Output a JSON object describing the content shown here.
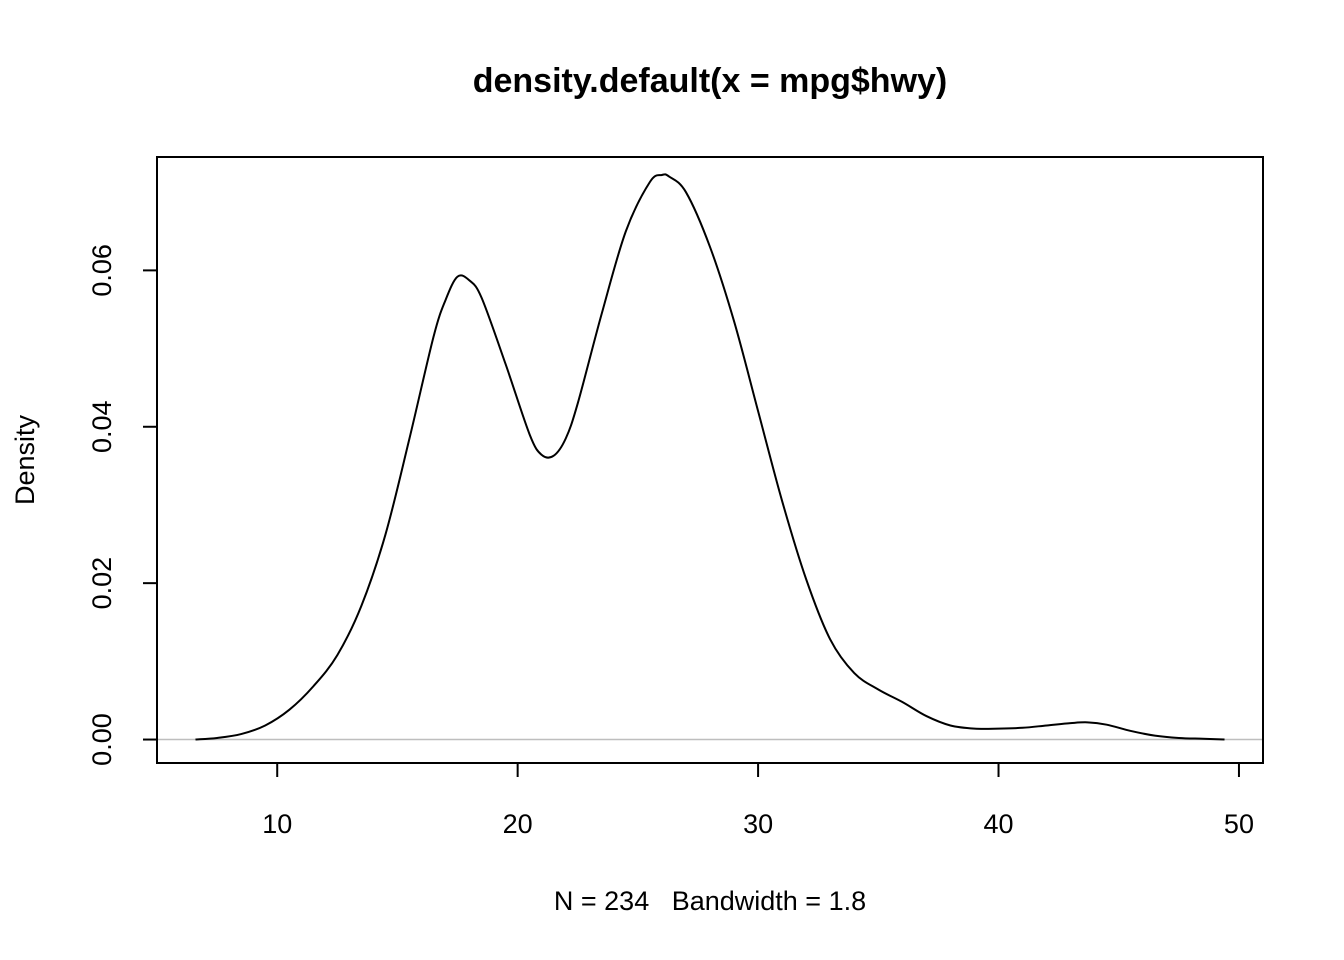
{
  "chart_data": {
    "type": "area",
    "title": "density.default(x = mpg$hwy)",
    "xlabel": "N = 234   Bandwidth = 1.8",
    "ylabel": "Density",
    "xlim": [
      5,
      51
    ],
    "ylim": [
      -0.003,
      0.0745
    ],
    "x_ticks": [
      10,
      20,
      30,
      40,
      50
    ],
    "x_tick_labels": [
      "10",
      "20",
      "30",
      "40",
      "50"
    ],
    "y_ticks": [
      0.0,
      0.02,
      0.04,
      0.06
    ],
    "y_tick_labels": [
      "0.00",
      "0.02",
      "0.04",
      "0.06"
    ],
    "grid": false,
    "baseline": 0,
    "baseline_color": "#bebebe",
    "line_color": "#000000",
    "series": [
      {
        "x": [
          6.6,
          7.5,
          8.5,
          9.5,
          10.5,
          11.5,
          12.5,
          13.5,
          14.5,
          15.5,
          16.5,
          17.0,
          17.5,
          18.0,
          18.5,
          19.5,
          20.5,
          21.0,
          21.5,
          22.0,
          22.5,
          23.5,
          24.5,
          25.5,
          26.0,
          26.3,
          27.0,
          28.0,
          29.0,
          30.0,
          31.0,
          32.0,
          33.0,
          34.0,
          35.0,
          36.0,
          37.0,
          38.0,
          39.0,
          40.0,
          41.0,
          42.0,
          43.0,
          43.7,
          44.5,
          45.5,
          46.5,
          47.5,
          48.5,
          49.4
        ],
        "y": [
          0.0,
          0.0002,
          0.0007,
          0.0018,
          0.0038,
          0.0068,
          0.0108,
          0.0171,
          0.0262,
          0.0385,
          0.0515,
          0.0562,
          0.0592,
          0.0587,
          0.0565,
          0.048,
          0.039,
          0.0364,
          0.0363,
          0.0385,
          0.043,
          0.0545,
          0.065,
          0.0713,
          0.0722,
          0.072,
          0.07,
          0.063,
          0.0535,
          0.042,
          0.0305,
          0.0205,
          0.0128,
          0.0085,
          0.0064,
          0.0048,
          0.003,
          0.0018,
          0.0014,
          0.0014,
          0.0015,
          0.0018,
          0.0021,
          0.0022,
          0.0019,
          0.0011,
          0.0005,
          0.0002,
          0.0001,
          0.0
        ]
      }
    ]
  }
}
